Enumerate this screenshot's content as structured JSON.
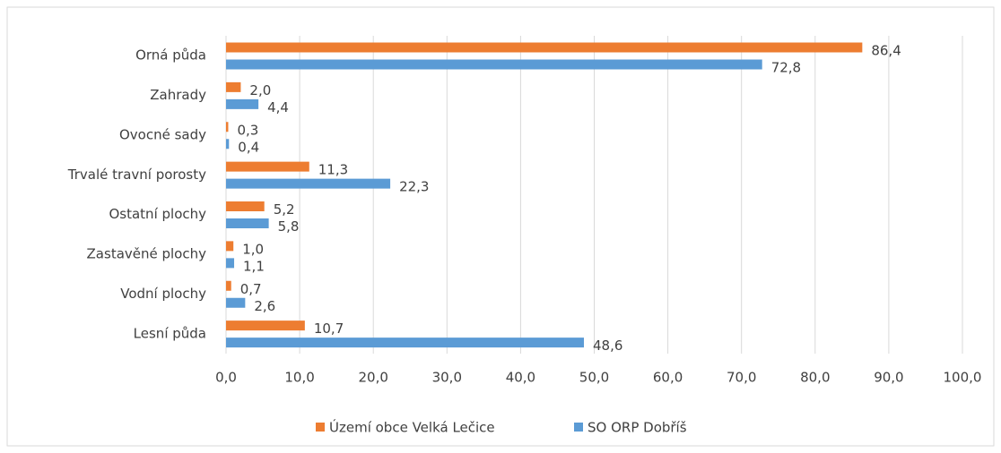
{
  "chart_data": {
    "type": "bar",
    "orientation": "horizontal",
    "categories": [
      "Orná půda",
      "Zahrady",
      "Ovocné sady",
      "Trvalé travní porosty",
      "Ostatní plochy",
      "Zastavěné plochy",
      "Vodní plochy",
      "Lesní půda"
    ],
    "series": [
      {
        "name": "Území obce Velká Lečice",
        "color": "#ed7d31",
        "values": [
          86.4,
          2.0,
          0.3,
          11.3,
          5.2,
          1.0,
          0.7,
          10.7
        ],
        "value_labels": [
          "86,4",
          "2,0",
          "0,3",
          "11,3",
          "5,2",
          "1,0",
          "0,7",
          "10,7"
        ]
      },
      {
        "name": "SO ORP Dobříš",
        "color": "#5b9bd5",
        "values": [
          72.8,
          4.4,
          0.4,
          22.3,
          5.8,
          1.1,
          2.6,
          48.6
        ],
        "value_labels": [
          "72,8",
          "4,4",
          "0,4",
          "22,3",
          "5,8",
          "1,1",
          "2,6",
          "48,6"
        ]
      }
    ],
    "xlim": [
      0,
      100
    ],
    "xticks": [
      {
        "value": 0,
        "label": "0,0"
      },
      {
        "value": 10,
        "label": "10,0"
      },
      {
        "value": 20,
        "label": "20,0"
      },
      {
        "value": 30,
        "label": "30,0"
      },
      {
        "value": 40,
        "label": "40,0"
      },
      {
        "value": 50,
        "label": "50,0"
      },
      {
        "value": 60,
        "label": "60,0"
      },
      {
        "value": 70,
        "label": "70,0"
      },
      {
        "value": 80,
        "label": "80,0"
      },
      {
        "value": 90,
        "label": "90,0"
      },
      {
        "value": 100,
        "label": "100,0"
      }
    ],
    "grid": true,
    "legend": "bottom"
  }
}
